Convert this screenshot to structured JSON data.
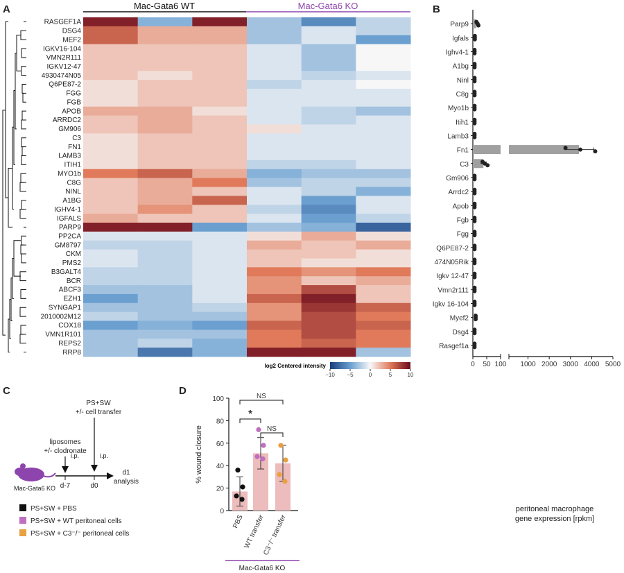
{
  "panels": {
    "a": "A",
    "b": "B",
    "c": "C",
    "d": "D"
  },
  "chart_data": [
    {
      "type": "heatmap",
      "panel": "A",
      "group_labels": [
        "Mac-Gata6 WT",
        "Mac-Gata6 KO"
      ],
      "group_colors": [
        "#111111",
        "#8e44ad"
      ],
      "columns_per_group": 3,
      "rows": [
        "RASGEF1A",
        "DSG4",
        "MEF2",
        "IGKV16-104",
        "VMN2R111",
        "IGKV12-47",
        "4930474N05",
        "Q6PE87-2",
        "FGG",
        "FGB",
        "APOB",
        "ARRDC2",
        "GM906",
        "C3",
        "FN1",
        "LAMB3",
        "ITIH1",
        "MYO1b",
        "C8G",
        "NINL",
        "A1BG",
        "IGHV4-1",
        "IGFALS",
        "PARP9",
        "PP2CA",
        "GM8797",
        "CKM",
        "PMS2",
        "B3GALT4",
        "BCR",
        "ABCF3",
        "EZH1",
        "SYNGAP1",
        "2010002M12",
        "COX18",
        "VMN1R101",
        "REPS2",
        "RRP8"
      ],
      "values": [
        [
          9,
          -4,
          9,
          -3,
          -6,
          -2
        ],
        [
          6,
          3,
          3,
          -3,
          -1,
          -2
        ],
        [
          6,
          3,
          3,
          -3,
          -1,
          -5
        ],
        [
          2,
          2,
          2,
          -1,
          -3,
          0
        ],
        [
          2,
          2,
          2,
          -1,
          -3,
          0
        ],
        [
          2,
          2,
          2,
          -1,
          -3,
          0
        ],
        [
          2,
          1,
          2,
          -1,
          -2,
          -1
        ],
        [
          1,
          2,
          2,
          -2,
          -1,
          0
        ],
        [
          1,
          2,
          2,
          -1,
          -1,
          -1
        ],
        [
          1,
          2,
          2,
          -1,
          -1,
          -1
        ],
        [
          3,
          3,
          1,
          -1,
          -2,
          -3
        ],
        [
          2,
          3,
          2,
          -1,
          -2,
          -1
        ],
        [
          2,
          3,
          2,
          1,
          -1,
          -1
        ],
        [
          1,
          2,
          2,
          -1,
          -1,
          -1
        ],
        [
          1,
          2,
          2,
          -1,
          -1,
          -1
        ],
        [
          1,
          2,
          2,
          -1,
          -1,
          -1
        ],
        [
          1,
          2,
          2,
          -2,
          -2,
          -1
        ],
        [
          5,
          6,
          3,
          -4,
          -3,
          -3
        ],
        [
          2,
          3,
          5,
          -3,
          -2,
          -2
        ],
        [
          2,
          3,
          2,
          -1,
          -2,
          -4
        ],
        [
          2,
          3,
          6,
          -1,
          -5,
          -1
        ],
        [
          2,
          4,
          2,
          -2,
          -6,
          -1
        ],
        [
          3,
          2,
          2,
          -1,
          -5,
          -2
        ],
        [
          9,
          9,
          -5,
          -3,
          -4,
          -8
        ],
        [
          -1,
          -1,
          -1,
          1,
          3,
          1
        ],
        [
          -2,
          -2,
          -1,
          3,
          2,
          3
        ],
        [
          -1,
          -2,
          -1,
          2,
          2,
          1
        ],
        [
          -1,
          -2,
          -1,
          2,
          1,
          1
        ],
        [
          -2,
          -2,
          -1,
          5,
          4,
          5
        ],
        [
          -2,
          -2,
          -1,
          4,
          2,
          3
        ],
        [
          -3,
          -3,
          -1,
          4,
          7,
          2
        ],
        [
          -5,
          -3,
          -1,
          6,
          9,
          2
        ],
        [
          -3,
          -3,
          -2,
          4,
          8,
          6
        ],
        [
          -2,
          -3,
          -3,
          4,
          7,
          5
        ],
        [
          -5,
          -4,
          -5,
          6,
          7,
          6
        ],
        [
          -3,
          -3,
          -3,
          5,
          7,
          5
        ],
        [
          -3,
          -2,
          -4,
          5,
          6,
          5
        ],
        [
          -3,
          -7,
          -4,
          9,
          9,
          -3
        ]
      ],
      "colorbar": {
        "label": "log2 Centered intensity",
        "min": -10,
        "max": 10,
        "ticks": [
          "−10",
          "−5",
          "0",
          "5",
          "10"
        ]
      },
      "colors": {
        "low": "#1a3d7c",
        "mid": "#f7f7f7",
        "high": "#6b0a1d"
      }
    },
    {
      "type": "bar",
      "panel": "B",
      "orientation": "horizontal",
      "categories": [
        "Parp9",
        "Igfals",
        "Ighv4-1",
        "A1bg",
        "Ninl",
        "C8g",
        "Myo1b",
        "Itih1",
        "Lamb3",
        "Fn1",
        "C3",
        "Gm906",
        "Arrdc2",
        "Apob",
        "Fgb",
        "Fgg",
        "Q6PE87-2",
        "474N05Rik",
        "Igkv 12-47",
        "Vmn2r111",
        "Igkv 16-104",
        "Myef2",
        "Dsg4",
        "Rasgef1a"
      ],
      "values": [
        12,
        2,
        1,
        1,
        1,
        1,
        1,
        1,
        1,
        3400,
        38,
        1,
        1,
        1,
        1,
        1,
        1,
        1,
        1,
        1,
        1,
        5,
        1,
        1
      ],
      "sd": [
        5,
        1,
        1,
        1,
        1,
        1,
        1,
        1,
        1,
        700,
        10,
        1,
        1,
        1,
        1,
        1,
        1,
        1,
        1,
        1,
        1,
        2,
        1,
        1
      ],
      "points": {
        "Parp9": [
          8,
          12,
          15
        ],
        "Fn1": [
          2700,
          3400,
          4100
        ],
        "C3": [
          30,
          38,
          48
        ]
      },
      "xlabel": "peritoneal macrophage gene expression [rpkm]",
      "x_segments": [
        [
          0,
          100
        ],
        [
          100,
          5000
        ]
      ],
      "xticks_low": [
        "0",
        "50",
        "100"
      ],
      "xticks_high": [
        "1000",
        "2000",
        "3000",
        "4000",
        "5000"
      ],
      "bar_color": "#a0a0a0"
    },
    {
      "type": "bar",
      "panel": "D",
      "categories": [
        "PBS",
        "WT transfer",
        "C3⁻/⁻ transfer"
      ],
      "values": [
        17,
        51,
        42
      ],
      "sd": [
        13,
        14,
        16
      ],
      "points": [
        [
          36,
          21,
          13,
          10
        ],
        [
          72,
          58,
          48,
          46
        ],
        [
          58,
          45,
          32,
          26
        ]
      ],
      "point_colors": [
        "#111111",
        "#c06ec0",
        "#e8a040"
      ],
      "ylabel": "% wound closure",
      "ylim": [
        0,
        100
      ],
      "yticks": [
        "0",
        "20",
        "40",
        "60",
        "80",
        "100"
      ],
      "bar_color": "#edbcbc",
      "group_label": "Mac-Gata6 KO",
      "significance": [
        "*",
        "NS",
        "NS"
      ]
    }
  ],
  "schematic": {
    "top_label_1": "PS+SW",
    "top_label_2": "+/- cell transfer",
    "left_label_1": "liposomes",
    "left_label_2": "+/- clodronate",
    "ip1": "i.p.",
    "ip2": "i.p.",
    "day_minus7": "d-7",
    "day0": "d0",
    "end_1": "d1",
    "end_2": "analysis",
    "mouse_label": "Mac-Gata6 KO",
    "legend": [
      {
        "label": "PS+SW + PBS",
        "color": "#111111"
      },
      {
        "label": "PS+SW + WT peritoneal cells",
        "color": "#c06ec0"
      },
      {
        "label": "PS+SW + C3⁻/⁻ peritoneal cells",
        "color": "#e8a040"
      }
    ]
  }
}
